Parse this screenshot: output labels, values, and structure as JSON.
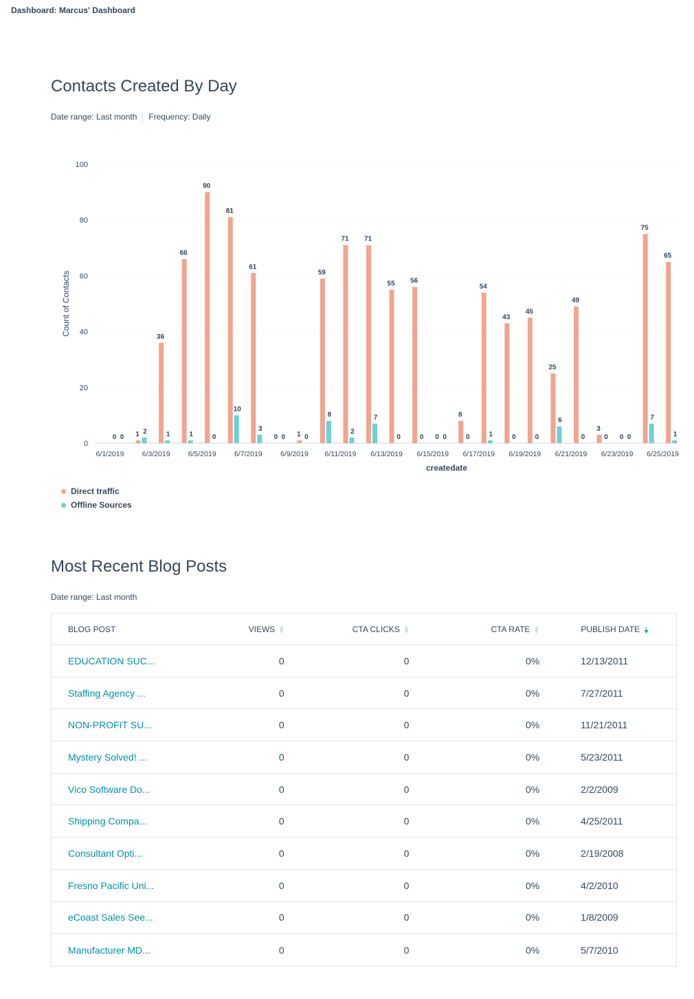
{
  "dashboard": {
    "title": "Dashboard: Marcus' Dashboard"
  },
  "contacts_report": {
    "title": "Contacts Created By Day",
    "date_range": "Date range: Last month",
    "frequency": "Frequency: Daily"
  },
  "colors": {
    "direct": "#f2a48e",
    "offline": "#6dd0d7",
    "link": "#0091ae",
    "text": "#33475b"
  },
  "chart_data": {
    "type": "bar",
    "title": "Contacts Created By Day",
    "xlabel": "createdate",
    "ylabel": "Count of Contacts",
    "ylim": [
      0,
      100
    ],
    "yticks": [
      0,
      20,
      40,
      60,
      80,
      100
    ],
    "grid": true,
    "legend_position": "bottom-left",
    "categories": [
      "6/1/2019",
      "6/2/2019",
      "6/3/2019",
      "6/4/2019",
      "6/5/2019",
      "6/6/2019",
      "6/7/2019",
      "6/8/2019",
      "6/9/2019",
      "6/10/2019",
      "6/11/2019",
      "6/12/2019",
      "6/13/2019",
      "6/14/2019",
      "6/15/2019",
      "6/16/2019",
      "6/17/2019",
      "6/18/2019",
      "6/19/2019",
      "6/20/2019",
      "6/21/2019",
      "6/22/2019",
      "6/23/2019",
      "6/24/2019",
      "6/25/2019"
    ],
    "xtick_labels": [
      "6/1/2019",
      "6/3/2019",
      "6/5/2019",
      "6/7/2019",
      "6/9/2019",
      "6/11/2019",
      "6/13/2019",
      "6/15/2019",
      "6/17/2019",
      "6/19/2019",
      "6/21/2019",
      "6/23/2019",
      "6/25/2019"
    ],
    "series": [
      {
        "name": "Direct traffic",
        "color": "#f2a48e",
        "values": [
          0,
          1,
          36,
          66,
          90,
          81,
          61,
          0,
          1,
          59,
          71,
          71,
          55,
          56,
          0,
          8,
          54,
          43,
          45,
          25,
          49,
          3,
          0,
          75,
          65
        ]
      },
      {
        "name": "Offline Sources",
        "color": "#6dd0d7",
        "values": [
          0,
          2,
          1,
          1,
          0,
          10,
          3,
          0,
          0,
          8,
          2,
          7,
          0,
          0,
          0,
          0,
          1,
          0,
          0,
          6,
          0,
          0,
          0,
          7,
          1
        ]
      }
    ]
  },
  "blog_report": {
    "title": "Most Recent Blog Posts",
    "date_range": "Date range: Last month",
    "columns": [
      "BLOG POST",
      "VIEWS",
      "CTA CLICKS",
      "CTA RATE",
      "PUBLISH DATE"
    ],
    "rows": [
      {
        "post": "EDUCATION SUC...",
        "views": "0",
        "clicks": "0",
        "rate": "0%",
        "date": "12/13/2011"
      },
      {
        "post": "Staffing Agency ...",
        "views": "0",
        "clicks": "0",
        "rate": "0%",
        "date": "7/27/2011"
      },
      {
        "post": "NON-PROFIT SU...",
        "views": "0",
        "clicks": "0",
        "rate": "0%",
        "date": "11/21/2011"
      },
      {
        "post": "Mystery Solved! ...",
        "views": "0",
        "clicks": "0",
        "rate": "0%",
        "date": "5/23/2011"
      },
      {
        "post": "Vico Software Do...",
        "views": "0",
        "clicks": "0",
        "rate": "0%",
        "date": "2/2/2009"
      },
      {
        "post": "Shipping Compa...",
        "views": "0",
        "clicks": "0",
        "rate": "0%",
        "date": "4/25/2011"
      },
      {
        "post": "Consultant Opti...",
        "views": "0",
        "clicks": "0",
        "rate": "0%",
        "date": "2/19/2008"
      },
      {
        "post": "Fresno Pacific Uni...",
        "views": "0",
        "clicks": "0",
        "rate": "0%",
        "date": "4/2/2010"
      },
      {
        "post": "eCoast Sales See...",
        "views": "0",
        "clicks": "0",
        "rate": "0%",
        "date": "1/8/2009"
      },
      {
        "post": "Manufacturer MD...",
        "views": "0",
        "clicks": "0",
        "rate": "0%",
        "date": "5/7/2010"
      }
    ]
  }
}
